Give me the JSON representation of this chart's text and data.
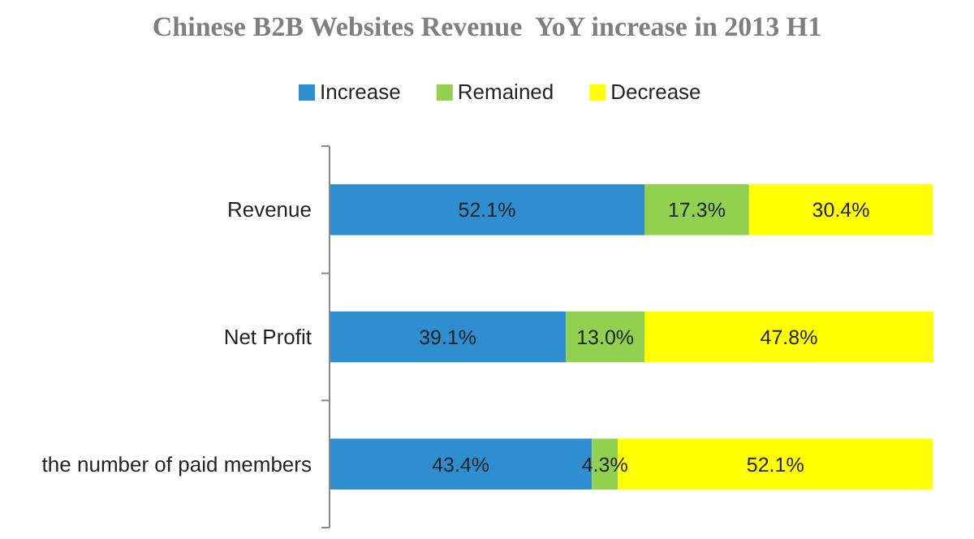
{
  "chart_data": {
    "type": "bar",
    "title": "Chinese B2B Websites Revenue  YoY increase in 2013 H1",
    "orientation": "horizontal",
    "stacked": true,
    "categories": [
      "Revenue",
      "Net Profit",
      "the number of paid members"
    ],
    "series": [
      {
        "name": "Increase",
        "color": "#2e8ecf",
        "values": [
          52.1,
          39.1,
          43.4
        ],
        "value_labels": [
          "52.1%",
          "39.1%",
          "43.4%"
        ]
      },
      {
        "name": "Remained",
        "color": "#92d050",
        "values": [
          17.3,
          13.0,
          4.3
        ],
        "value_labels": [
          "17.3%",
          "13.0%",
          "4.3%"
        ]
      },
      {
        "name": "Decrease",
        "color": "#ffff00",
        "values": [
          30.4,
          47.8,
          52.1
        ],
        "value_labels": [
          "30.4%",
          "47.8%",
          "52.1%"
        ]
      }
    ],
    "tick_labels": "y",
    "legend": "top"
  }
}
